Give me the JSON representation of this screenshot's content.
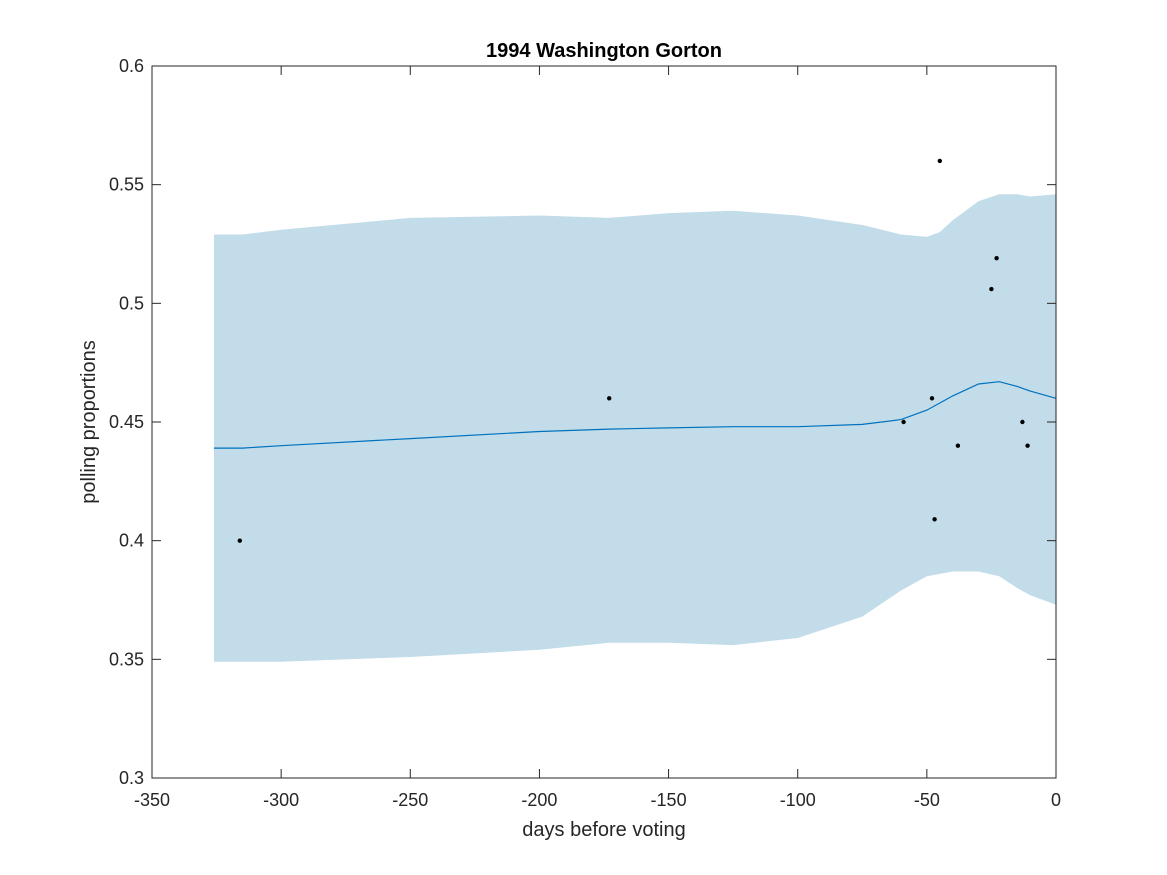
{
  "chart_data": {
    "type": "line",
    "title": "1994 Washington Gorton",
    "xlabel": "days before voting",
    "ylabel": "polling proportions",
    "xlim": [
      -350,
      0
    ],
    "ylim": [
      0.3,
      0.6
    ],
    "xticks": [
      -350,
      -300,
      -250,
      -200,
      -150,
      -100,
      -50,
      0
    ],
    "xtick_labels": [
      "-350",
      "-300",
      "-250",
      "-200",
      "-150",
      "-100",
      "-50",
      "0"
    ],
    "yticks": [
      0.3,
      0.35,
      0.4,
      0.45,
      0.5,
      0.55,
      0.6
    ],
    "ytick_labels": [
      "0.3",
      "0.35",
      "0.4",
      "0.45",
      "0.5",
      "0.55",
      "0.6"
    ],
    "grid": false,
    "series": [
      {
        "kind": "band",
        "color": "#c2dcea",
        "x": [
          -326,
          -315,
          -300,
          -250,
          -200,
          -173,
          -150,
          -125,
          -100,
          -75,
          -60,
          -50,
          -45,
          -40,
          -30,
          -22,
          -15,
          -10,
          0
        ],
        "upper": [
          0.529,
          0.529,
          0.531,
          0.536,
          0.537,
          0.536,
          0.538,
          0.539,
          0.537,
          0.533,
          0.529,
          0.528,
          0.53,
          0.535,
          0.543,
          0.546,
          0.546,
          0.545,
          0.546
        ],
        "lower": [
          0.349,
          0.349,
          0.349,
          0.351,
          0.354,
          0.357,
          0.357,
          0.356,
          0.359,
          0.368,
          0.379,
          0.385,
          0.386,
          0.387,
          0.387,
          0.385,
          0.38,
          0.377,
          0.373
        ]
      },
      {
        "kind": "line",
        "color": "#0072bd",
        "x": [
          -326,
          -315,
          -300,
          -250,
          -200,
          -173,
          -150,
          -125,
          -100,
          -75,
          -60,
          -50,
          -45,
          -40,
          -30,
          -22,
          -15,
          -10,
          0
        ],
        "y": [
          0.439,
          0.439,
          0.44,
          0.443,
          0.446,
          0.447,
          0.4475,
          0.448,
          0.448,
          0.449,
          0.451,
          0.455,
          0.458,
          0.461,
          0.466,
          0.467,
          0.465,
          0.463,
          0.46
        ]
      },
      {
        "kind": "scatter",
        "color": "#000000",
        "x": [
          -316,
          -173,
          -59,
          -48,
          -47,
          -45,
          -38,
          -25,
          -23,
          -13,
          -11
        ],
        "y": [
          0.4,
          0.46,
          0.45,
          0.46,
          0.409,
          0.56,
          0.44,
          0.506,
          0.519,
          0.45,
          0.44
        ]
      }
    ]
  }
}
